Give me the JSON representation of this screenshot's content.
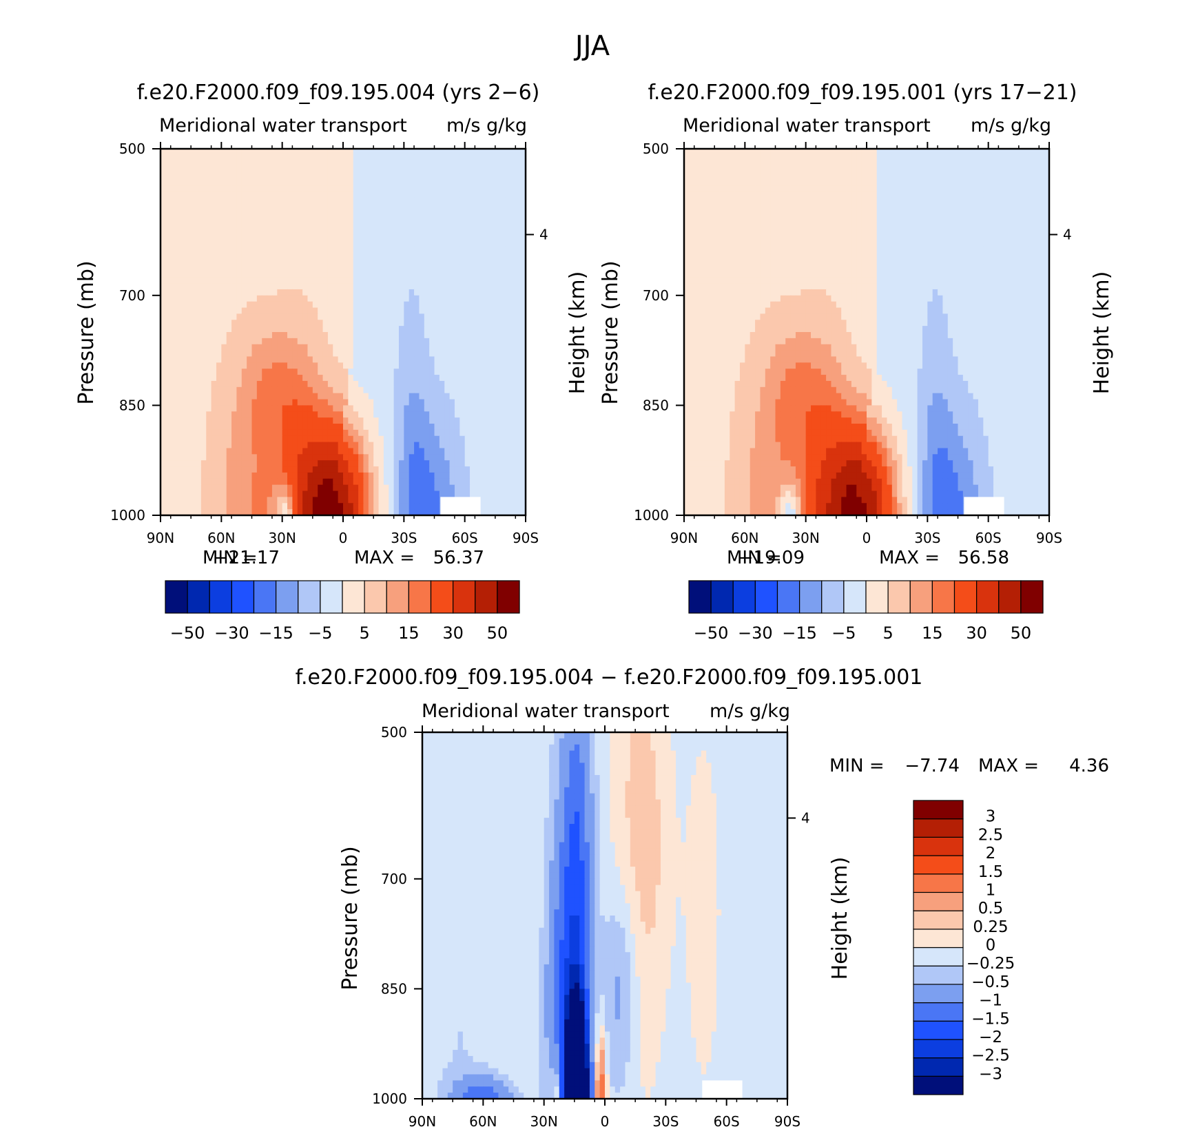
{
  "figure": {
    "title": "JJA"
  },
  "chart_data": [
    {
      "type": "contour",
      "title": "f.e20.F2000.f09_f09.195.004 (yrs 2-6)",
      "subtitle_left": "Meridional water transport",
      "subtitle_right": "m/s g/kg",
      "xlabel": "",
      "ylabel": "Pressure (mb)",
      "ylabel_right": "Height (km)",
      "x_ticks": [
        "90N",
        "60N",
        "30N",
        "0",
        "30S",
        "60S",
        "90S"
      ],
      "y_ticks": [
        "500",
        "700",
        "850",
        "1000"
      ],
      "y_right_ticks": [
        "4"
      ],
      "xlim": [
        90,
        -90
      ],
      "ylim": [
        1000,
        500
      ],
      "min_label": "MIN =",
      "min_value": "-21.17",
      "max_label": "MAX =",
      "max_value": "56.37",
      "peak_pos": {
        "lat": 5,
        "p": 990,
        "value": 56.37
      },
      "peak_neg": {
        "lat": 28,
        "p": 995,
        "value": -21.17
      },
      "colorbar": {
        "orientation": "horizontal",
        "levels": [
          -50,
          -40,
          -30,
          -20,
          -15,
          -10,
          -5,
          0,
          5,
          10,
          15,
          20,
          30,
          40,
          50
        ],
        "tick_labels": [
          "-50",
          "-30",
          "-15",
          "-5",
          "5",
          "15",
          "30",
          "50"
        ],
        "colors": [
          "#000f7a",
          "#0028b0",
          "#0c3ee0",
          "#1f52ff",
          "#4a76f5",
          "#7c9ff0",
          "#b0c7f7",
          "#d6e6fa",
          "#fde6d5",
          "#fbc8ad",
          "#f7a07d",
          "#f77648",
          "#f44d19",
          "#d9330d",
          "#b41f05",
          "#800000"
        ]
      }
    },
    {
      "type": "contour",
      "title": "f.e20.F2000.f09_f09.195.001 (yrs 17-21)",
      "subtitle_left": "Meridional water transport",
      "subtitle_right": "m/s g/kg",
      "ylabel": "Pressure (mb)",
      "ylabel_right": "Height (km)",
      "x_ticks": [
        "90N",
        "60N",
        "30N",
        "0",
        "30S",
        "60S",
        "90S"
      ],
      "y_ticks": [
        "500",
        "700",
        "850",
        "1000"
      ],
      "y_right_ticks": [
        "4"
      ],
      "xlim": [
        90,
        -90
      ],
      "ylim": [
        1000,
        500
      ],
      "min_label": "MIN =",
      "min_value": "-19.09",
      "max_label": "MAX =",
      "max_value": "56.58",
      "peak_pos": {
        "lat": 4,
        "p": 990,
        "value": 56.58
      },
      "peak_neg": {
        "lat": 40,
        "p": 985,
        "value": -19.09
      },
      "colorbar": {
        "orientation": "horizontal",
        "levels": [
          -50,
          -40,
          -30,
          -20,
          -15,
          -10,
          -5,
          0,
          5,
          10,
          15,
          20,
          30,
          40,
          50
        ],
        "tick_labels": [
          "-50",
          "-30",
          "-15",
          "-5",
          "5",
          "15",
          "30",
          "50"
        ],
        "colors": [
          "#000f7a",
          "#0028b0",
          "#0c3ee0",
          "#1f52ff",
          "#4a76f5",
          "#7c9ff0",
          "#b0c7f7",
          "#d6e6fa",
          "#fde6d5",
          "#fbc8ad",
          "#f7a07d",
          "#f77648",
          "#f44d19",
          "#d9330d",
          "#b41f05",
          "#800000"
        ]
      }
    },
    {
      "type": "contour",
      "title": "f.e20.F2000.f09_f09.195.004 - f.e20.F2000.f09_f09.195.001",
      "subtitle_left": "Meridional water transport",
      "subtitle_right": "m/s g/kg",
      "ylabel": "Pressure (mb)",
      "ylabel_right": "Height (km)",
      "x_ticks": [
        "90N",
        "60N",
        "30N",
        "0",
        "30S",
        "60S",
        "90S"
      ],
      "y_ticks": [
        "500",
        "700",
        "850",
        "1000"
      ],
      "y_right_ticks": [
        "4"
      ],
      "xlim": [
        90,
        -90
      ],
      "ylim": [
        1000,
        500
      ],
      "min_label": "MIN =",
      "min_value": "-7.74",
      "max_label": "MAX =",
      "max_value": "4.36",
      "peak_pos": {
        "lat": 10,
        "p": 940,
        "value": 4.36
      },
      "peak_neg": {
        "lat": 14,
        "p": 960,
        "value": -7.74
      },
      "colorbar": {
        "orientation": "vertical",
        "levels": [
          -3,
          -2.5,
          -2,
          -1.5,
          -1,
          -0.5,
          -0.25,
          0,
          0.25,
          0.5,
          1,
          1.5,
          2,
          2.5,
          3
        ],
        "tick_labels": [
          "3",
          "2.5",
          "2",
          "1.5",
          "1",
          "0.5",
          "0.25",
          "0",
          "-0.25",
          "-0.5",
          "-1",
          "-1.5",
          "-2",
          "-2.5",
          "-3"
        ],
        "colors": [
          "#000f7a",
          "#0028b0",
          "#0c3ee0",
          "#1f52ff",
          "#4a76f5",
          "#7c9ff0",
          "#b0c7f7",
          "#d6e6fa",
          "#fde6d5",
          "#fbc8ad",
          "#f7a07d",
          "#f77648",
          "#f44d19",
          "#d9330d",
          "#b41f05",
          "#800000"
        ]
      }
    }
  ]
}
